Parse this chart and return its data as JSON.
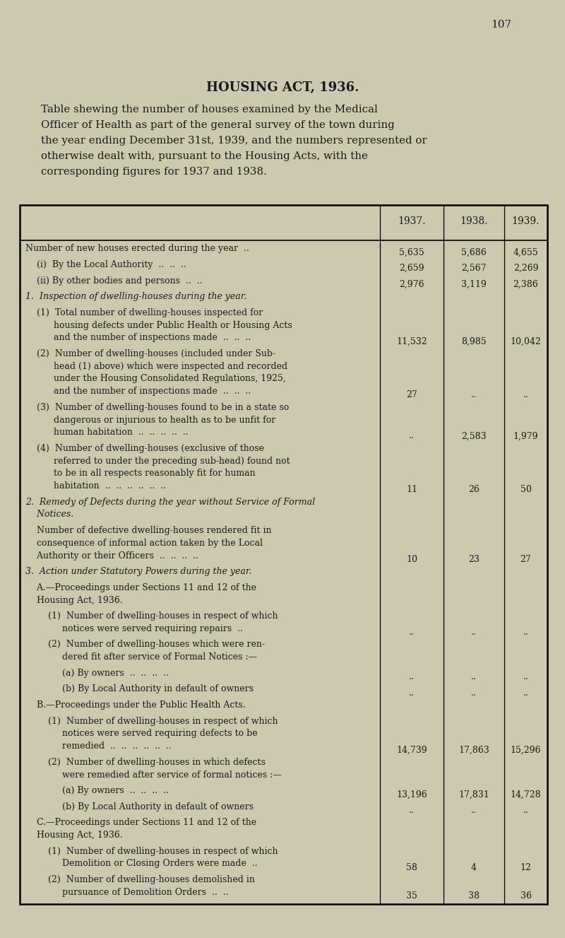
{
  "page_number": "107",
  "title": "HOUSING ACT, 1936.",
  "subtitle_lines": [
    "Table shewing the number of houses examined by the Medical",
    "Officer of Health as part of the general survey of the town during",
    "the year ending December 31st, 1939, and the numbers represented or",
    "otherwise dealt with, pursuant to the Housing Acts, with the",
    "corresponding figures for 1937 and 1938."
  ],
  "col_headers": [
    "1937.",
    "1938.",
    "1939."
  ],
  "bg_color": "#ccc9b0",
  "text_color": "#1a1a1a",
  "rows": [
    {
      "lines": [
        "Number of new houses erected during the year  .."
      ],
      "italic": false,
      "nlines": 1,
      "v1937": "5,635",
      "v1938": "5,686",
      "v1939": "4,655"
    },
    {
      "lines": [
        "    (i)  By the Local Authority  ..  ..  .."
      ],
      "italic": false,
      "nlines": 1,
      "v1937": "2,659",
      "v1938": "2,567",
      "v1939": "2,269"
    },
    {
      "lines": [
        "    (ii) By other bodies and persons  ..  .."
      ],
      "italic": false,
      "nlines": 1,
      "v1937": "2,976",
      "v1938": "3,119",
      "v1939": "2,386"
    },
    {
      "lines": [
        "1.  Inspection of dwelling-houses during the year."
      ],
      "italic": true,
      "nlines": 1,
      "v1937": "",
      "v1938": "",
      "v1939": ""
    },
    {
      "lines": [
        "    (1)  Total number of dwelling-houses inspected for",
        "          housing defects under Public Health or Housing Acts",
        "          and the number of inspections made  ..  ..  .."
      ],
      "italic": false,
      "nlines": 3,
      "v1937": "11,532",
      "v1938": "8,985",
      "v1939": "10,042"
    },
    {
      "lines": [
        "    (2)  Number of dwelling-houses (included under Sub-",
        "          head (1) above) which were inspected and recorded",
        "          under the Housing Consolidated Regulations, 1925,",
        "          and the number of inspections made  ..  ..  .."
      ],
      "italic": false,
      "nlines": 4,
      "v1937": "27",
      "v1938": "..",
      "v1939": ".."
    },
    {
      "lines": [
        "    (3)  Number of dwelling-houses found to be in a state so",
        "          dangerous or injurious to health as to be unfit for",
        "          human habitation  ..  ..  ..  ..  .."
      ],
      "italic": false,
      "nlines": 3,
      "v1937": "..",
      "v1938": "2,583",
      "v1939": "1,979"
    },
    {
      "lines": [
        "    (4)  Number of dwelling-houses (exclusive of those",
        "          referred to under the preceding sub-head) found not",
        "          to be in all respects reasonably fit for human",
        "          habitation  ..  ..  ..  ..  ..  .."
      ],
      "italic": false,
      "nlines": 4,
      "v1937": "11",
      "v1938": "26",
      "v1939": "50"
    },
    {
      "lines": [
        "2.  Remedy of Defects during the year without Service of Formal",
        "    Notices."
      ],
      "italic": true,
      "nlines": 2,
      "v1937": "",
      "v1938": "",
      "v1939": ""
    },
    {
      "lines": [
        "    Number of defective dwelling-houses rendered fit in",
        "    consequence of informal action taken by the Local",
        "    Authority or their Officers  ..  ..  ..  .."
      ],
      "italic": false,
      "nlines": 3,
      "v1937": "10",
      "v1938": "23",
      "v1939": "27"
    },
    {
      "lines": [
        "3.  Action under Statutory Powers during the year."
      ],
      "italic": true,
      "nlines": 1,
      "v1937": "",
      "v1938": "",
      "v1939": ""
    },
    {
      "lines": [
        "    A.—Proceedings under Sections 11 and 12 of the",
        "    Housing Act, 1936."
      ],
      "italic": false,
      "nlines": 2,
      "v1937": "",
      "v1938": "",
      "v1939": ""
    },
    {
      "lines": [
        "        (1)  Number of dwelling-houses in respect of which",
        "             notices were served requiring repairs  .."
      ],
      "italic": false,
      "nlines": 2,
      "v1937": "..",
      "v1938": "..",
      "v1939": ".."
    },
    {
      "lines": [
        "        (2)  Number of dwelling-houses which were ren-",
        "             dered fit after service of Formal Notices :—"
      ],
      "italic": false,
      "nlines": 2,
      "v1937": "",
      "v1938": "",
      "v1939": ""
    },
    {
      "lines": [
        "             (a) By owners  ..  ..  ..  .."
      ],
      "italic": false,
      "nlines": 1,
      "v1937": "..",
      "v1938": "..",
      "v1939": ".."
    },
    {
      "lines": [
        "             (b) By Local Authority in default of owners"
      ],
      "italic": false,
      "nlines": 1,
      "v1937": "..",
      "v1938": "..",
      "v1939": ".."
    },
    {
      "lines": [
        "    B.—Proceedings under the Public Health Acts."
      ],
      "italic": false,
      "nlines": 1,
      "v1937": "",
      "v1938": "",
      "v1939": ""
    },
    {
      "lines": [
        "        (1)  Number of dwelling-houses in respect of which",
        "             notices were served requiring defects to be",
        "             remedied  ..  ..  ..  ..  ..  .."
      ],
      "italic": false,
      "nlines": 3,
      "v1937": "14,739",
      "v1938": "17,863",
      "v1939": "15,296"
    },
    {
      "lines": [
        "        (2)  Number of dwelling-houses in which defects",
        "             were remedied after service of formal notices :—"
      ],
      "italic": false,
      "nlines": 2,
      "v1937": "",
      "v1938": "",
      "v1939": ""
    },
    {
      "lines": [
        "             (a) By owners  ..  ..  ..  .."
      ],
      "italic": false,
      "nlines": 1,
      "v1937": "13,196",
      "v1938": "17,831",
      "v1939": "14,728"
    },
    {
      "lines": [
        "             (b) By Local Authority in default of owners"
      ],
      "italic": false,
      "nlines": 1,
      "v1937": "..",
      "v1938": "..",
      "v1939": ".."
    },
    {
      "lines": [
        "    C.—Proceedings under Sections 11 and 12 of the",
        "    Housing Act, 1936."
      ],
      "italic": false,
      "nlines": 2,
      "v1937": "",
      "v1938": "",
      "v1939": ""
    },
    {
      "lines": [
        "        (1)  Number of dwelling-houses in respect of which",
        "             Demolition or Closing Orders were made  .."
      ],
      "italic": false,
      "nlines": 2,
      "v1937": "58",
      "v1938": "4",
      "v1939": "12"
    },
    {
      "lines": [
        "        (2)  Number of dwelling-houses demolished in",
        "             pursuance of Demolition Orders  ..  .."
      ],
      "italic": false,
      "nlines": 2,
      "v1937": "35",
      "v1938": "38",
      "v1939": "36"
    }
  ]
}
